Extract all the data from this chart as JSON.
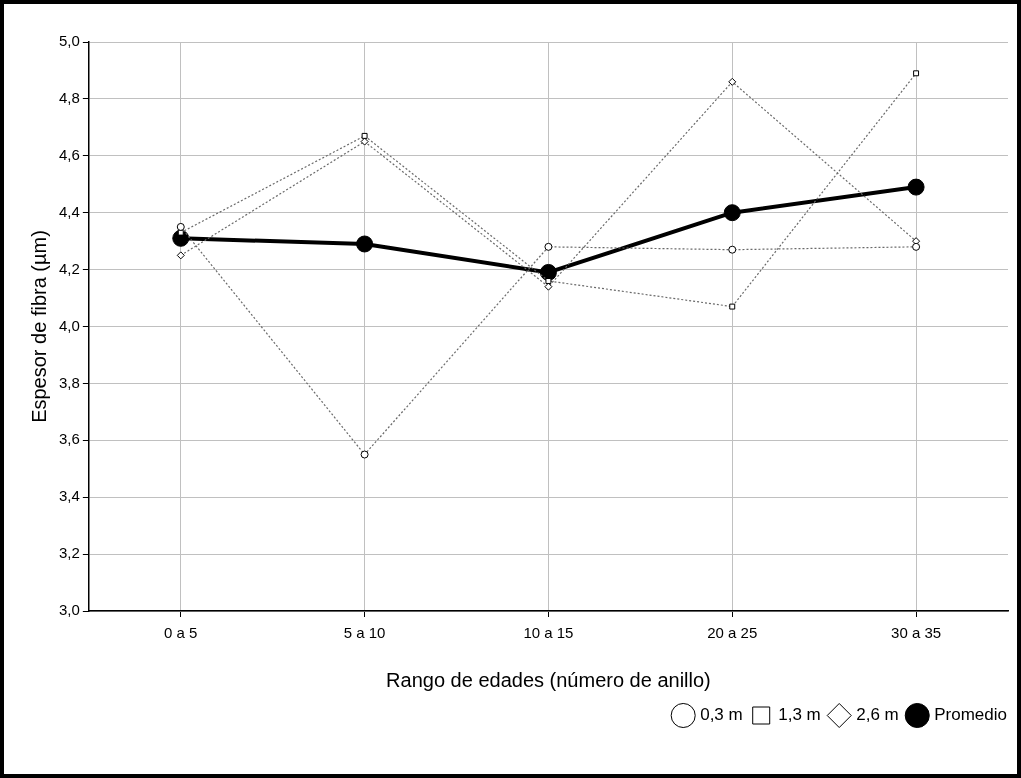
{
  "chart_data": {
    "type": "line",
    "xlabel": "Rango de edades (número de anillo)",
    "ylabel": "Espesor de fibra (µm)",
    "categories": [
      "0 a 5",
      "5 a 10",
      "10 a 15",
      "20 a 25",
      "30 a 35"
    ],
    "ylim": [
      3,
      5
    ],
    "yticks": [
      {
        "value": 3,
        "label": "3,0"
      },
      {
        "value": 3.2,
        "label": "3,2"
      },
      {
        "value": 3.4,
        "label": "3,4"
      },
      {
        "value": 3.6,
        "label": "3,6"
      },
      {
        "value": 3.8,
        "label": "3,8"
      },
      {
        "value": 4,
        "label": "4,0"
      },
      {
        "value": 4.2,
        "label": "4,2"
      },
      {
        "value": 4.4,
        "label": "4,4"
      },
      {
        "value": 4.6,
        "label": "4,6"
      },
      {
        "value": 4.8,
        "label": "4,8"
      },
      {
        "value": 5,
        "label": "5,0"
      }
    ],
    "grid": true,
    "legend": "bottom right",
    "series": [
      {
        "name": "0,3 m",
        "color": "#6a6a6a",
        "marker": "circle",
        "line_style": "dotted",
        "values": [
          4.35,
          3.55,
          4.28,
          4.27,
          4.28
        ]
      },
      {
        "name": "1,3 m",
        "color": "#6a6a6a",
        "marker": "square",
        "line_style": "dotted",
        "values": [
          4.33,
          4.67,
          4.16,
          4.07,
          4.89
        ]
      },
      {
        "name": "2,6 m",
        "color": "#6a6a6a",
        "marker": "diamond",
        "line_style": "dotted",
        "values": [
          4.25,
          4.65,
          4.14,
          4.86,
          4.3
        ]
      },
      {
        "name": "Promedio",
        "color": "#000000",
        "marker": "circle",
        "line_style": "solid",
        "values": [
          4.31,
          4.29,
          4.19,
          4.4,
          4.49
        ]
      }
    ]
  }
}
